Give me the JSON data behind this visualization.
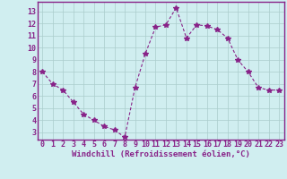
{
  "x": [
    0,
    1,
    2,
    3,
    4,
    5,
    6,
    7,
    8,
    9,
    10,
    11,
    12,
    13,
    14,
    15,
    16,
    17,
    18,
    19,
    20,
    21,
    22,
    23
  ],
  "y": [
    8.0,
    7.0,
    6.5,
    5.5,
    4.5,
    4.0,
    3.5,
    3.2,
    2.6,
    6.7,
    9.5,
    11.7,
    11.9,
    13.3,
    10.8,
    11.9,
    11.8,
    11.5,
    10.8,
    9.0,
    8.0,
    6.7,
    6.5,
    6.5
  ],
  "line_color": "#882288",
  "marker": "*",
  "marker_size": 4,
  "bg_color": "#d0eef0",
  "grid_color": "#aacccc",
  "xlabel": "Windchill (Refroidissement éolien,°C)",
  "xlabel_color": "#882288",
  "xlabel_fontsize": 6.5,
  "tick_label_color": "#882288",
  "tick_label_fontsize": 6,
  "ylim": [
    2.4,
    13.8
  ],
  "xlim": [
    -0.5,
    23.5
  ],
  "yticks": [
    3,
    4,
    5,
    6,
    7,
    8,
    9,
    10,
    11,
    12,
    13
  ],
  "xticks": [
    0,
    1,
    2,
    3,
    4,
    5,
    6,
    7,
    8,
    9,
    10,
    11,
    12,
    13,
    14,
    15,
    16,
    17,
    18,
    19,
    20,
    21,
    22,
    23
  ]
}
